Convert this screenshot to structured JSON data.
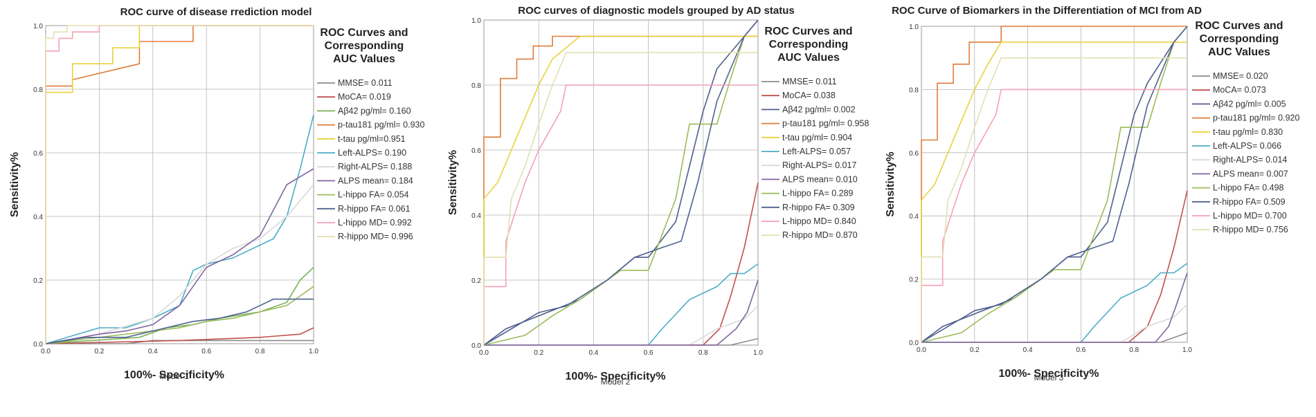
{
  "chart_data": [
    {
      "type": "line",
      "title": "ROC curve of disease rrediction model",
      "xlabel": "100%- Specificity%",
      "ylabel": "Sensitivity%",
      "caption": "Model 1",
      "xlim": [
        0,
        1
      ],
      "ylim": [
        0,
        1
      ],
      "xticks": [
        "0.0",
        "0.2",
        "0.4",
        "0.6",
        "0.8",
        "1.0"
      ],
      "yticks": [
        "0.0",
        "0.2",
        "0.4",
        "0.6",
        "0.8",
        "1.0"
      ],
      "legend_title": [
        "ROC Curves and",
        "Corresponding",
        "AUC Values"
      ],
      "series": [
        {
          "name": "MMSE",
          "label": "MMSE= 0.011",
          "color": "#8b8b8b",
          "x": [
            0,
            0.3,
            0.4,
            1
          ],
          "y": [
            0,
            0,
            0.01,
            0.01
          ]
        },
        {
          "name": "MoCA",
          "label": "MoCA= 0.019",
          "color": "#c0504d",
          "x": [
            0,
            0.5,
            0.8,
            0.95,
            1
          ],
          "y": [
            0,
            0.01,
            0.02,
            0.03,
            0.05
          ]
        },
        {
          "name": "Aβ42 pg/ml",
          "label": "Aβ42 pg/ml= 0.160",
          "color": "#77b255",
          "x": [
            0,
            0.35,
            0.45,
            0.55,
            0.65,
            0.8,
            0.9,
            0.95,
            1
          ],
          "y": [
            0,
            0.02,
            0.05,
            0.06,
            0.08,
            0.1,
            0.13,
            0.2,
            0.24
          ]
        },
        {
          "name": "p-tau181 pg/ml",
          "label": "p-tau181 pg/ml= 0.930",
          "color": "#e07b39",
          "x": [
            0,
            0,
            0.1,
            0.1,
            0.35,
            0.35,
            0.55,
            0.55,
            1
          ],
          "y": [
            0,
            0.81,
            0.81,
            0.83,
            0.88,
            0.95,
            0.95,
            1,
            1
          ]
        },
        {
          "name": "t-tau pg/ml",
          "label": "t-tau pg/ml=0.951",
          "color": "#e8d23a",
          "x": [
            0,
            0,
            0.1,
            0.1,
            0.25,
            0.25,
            0.35,
            0.35,
            1
          ],
          "y": [
            0,
            0.79,
            0.79,
            0.88,
            0.88,
            0.93,
            0.93,
            1,
            1
          ]
        },
        {
          "name": "Left-ALPS",
          "label": "Left-ALPS= 0.190",
          "color": "#4bacc6",
          "x": [
            0,
            0.2,
            0.3,
            0.4,
            0.5,
            0.55,
            0.6,
            0.7,
            0.85,
            0.9,
            0.95,
            1
          ],
          "y": [
            0,
            0.05,
            0.05,
            0.08,
            0.12,
            0.23,
            0.25,
            0.27,
            0.33,
            0.4,
            0.55,
            0.72
          ]
        },
        {
          "name": "Right-ALPS",
          "label": "Right-ALPS= 0.188",
          "color": "#d9d9d9",
          "x": [
            0,
            0.2,
            0.4,
            0.5,
            0.6,
            0.7,
            0.8,
            0.9,
            1
          ],
          "y": [
            0,
            0.03,
            0.08,
            0.15,
            0.25,
            0.3,
            0.33,
            0.4,
            0.5
          ]
        },
        {
          "name": "ALPS mean",
          "label": "ALPS mean= 0.184",
          "color": "#8064a2",
          "x": [
            0,
            0.2,
            0.3,
            0.4,
            0.5,
            0.6,
            0.7,
            0.8,
            0.9,
            1
          ],
          "y": [
            0,
            0.03,
            0.04,
            0.06,
            0.12,
            0.24,
            0.28,
            0.34,
            0.5,
            0.55
          ]
        },
        {
          "name": "L-hippo FA",
          "label": "L-hippo FA= 0.054",
          "color": "#9bbb59",
          "x": [
            0,
            0.4,
            0.5,
            0.6,
            0.7,
            0.8,
            0.9,
            0.95,
            1
          ],
          "y": [
            0,
            0.04,
            0.05,
            0.07,
            0.08,
            0.1,
            0.12,
            0.15,
            0.18
          ]
        },
        {
          "name": "R-hippo FA",
          "label": "R-hippo FA= 0.061",
          "color": "#4f6190",
          "x": [
            0,
            0.15,
            0.3,
            0.45,
            0.55,
            0.65,
            0.75,
            0.85,
            0.9,
            1
          ],
          "y": [
            0,
            0.02,
            0.02,
            0.05,
            0.07,
            0.08,
            0.1,
            0.14,
            0.14,
            0.14
          ]
        },
        {
          "name": "L-hippo MD",
          "label": "L-hippo MD= 0.992",
          "color": "#f4a0b5",
          "x": [
            0,
            0,
            0.05,
            0.05,
            0.1,
            0.1,
            0.2,
            0.2,
            1
          ],
          "y": [
            0,
            0.92,
            0.92,
            0.96,
            0.96,
            0.98,
            0.98,
            1,
            1
          ]
        },
        {
          "name": "R-hippo MD",
          "label": "R-hippo MD= 0.996",
          "color": "#e3e0b0",
          "x": [
            0,
            0,
            0.03,
            0.03,
            0.08,
            0.08,
            1
          ],
          "y": [
            0,
            0.96,
            0.96,
            0.98,
            0.98,
            1,
            1
          ]
        }
      ]
    },
    {
      "type": "line",
      "title": "ROC curves of diagnostic models grouped by AD status",
      "xlabel": "100%- Specificity%",
      "ylabel": "Sensitivity%",
      "caption": "Model 2",
      "xlim": [
        0,
        1
      ],
      "ylim": [
        0,
        1
      ],
      "xticks": [
        "0.0",
        "0.2",
        "0.4",
        "0.6",
        "0.8",
        "1.0"
      ],
      "yticks": [
        "0.0",
        "0.2",
        "0.4",
        "0.6",
        "0.8",
        "1.0"
      ],
      "legend_title": [
        "ROC Curves and",
        "Corresponding",
        "AUC Values"
      ],
      "series": [
        {
          "name": "MMSE",
          "label": "MMSE= 0.011",
          "color": "#8b8b8b",
          "x": [
            0,
            0.9,
            1
          ],
          "y": [
            0,
            0,
            0.02
          ]
        },
        {
          "name": "MoCA",
          "label": "MoCA= 0.038",
          "color": "#c0504d",
          "x": [
            0,
            0.8,
            0.86,
            0.9,
            0.95,
            1
          ],
          "y": [
            0,
            0,
            0.05,
            0.15,
            0.3,
            0.5
          ]
        },
        {
          "name": "Aβ42 pg/ml",
          "label": "Aβ42 pg/ml= 0.002",
          "color": "#4f5d8a",
          "x": [
            0,
            0.08,
            0.2,
            0.35,
            0.45,
            0.55,
            0.6,
            0.7,
            0.75,
            0.8,
            0.85,
            0.95,
            1
          ],
          "y": [
            0,
            0.05,
            0.09,
            0.14,
            0.2,
            0.27,
            0.27,
            0.38,
            0.55,
            0.72,
            0.85,
            0.95,
            1
          ]
        },
        {
          "name": "p-tau181 pg/ml",
          "label": "p-tau181 pg/ml= 0.958",
          "color": "#e07b39",
          "x": [
            0,
            0,
            0.06,
            0.06,
            0.12,
            0.12,
            0.18,
            0.18,
            0.25,
            0.25,
            1
          ],
          "y": [
            0,
            0.64,
            0.64,
            0.82,
            0.82,
            0.88,
            0.88,
            0.92,
            0.92,
            0.95,
            0.95
          ]
        },
        {
          "name": "t-tau pg/ml",
          "label": "t-tau pg/ml= 0.904",
          "color": "#e8d23a",
          "x": [
            0,
            0,
            0.05,
            0.1,
            0.15,
            0.2,
            0.25,
            0.35,
            1
          ],
          "y": [
            0,
            0.45,
            0.5,
            0.6,
            0.7,
            0.8,
            0.88,
            0.95,
            0.95
          ]
        },
        {
          "name": "Left-ALPS",
          "label": "Left-ALPS= 0.057",
          "color": "#4bacc6",
          "x": [
            0,
            0.6,
            0.65,
            0.75,
            0.85,
            0.9,
            0.95,
            1
          ],
          "y": [
            0,
            0,
            0.05,
            0.14,
            0.18,
            0.22,
            0.22,
            0.25
          ]
        },
        {
          "name": "Right-ALPS",
          "label": "Right-ALPS= 0.017",
          "color": "#d9d9d9",
          "x": [
            0,
            0.75,
            0.85,
            0.95,
            1
          ],
          "y": [
            0,
            0,
            0.05,
            0.08,
            0.12
          ]
        },
        {
          "name": "ALPS mean",
          "label": "ALPS mean= 0.010",
          "color": "#8064a2",
          "x": [
            0,
            0.85,
            0.92,
            0.96,
            1
          ],
          "y": [
            0,
            0,
            0.05,
            0.1,
            0.2
          ]
        },
        {
          "name": "L-hippo FA",
          "label": "L-hippo FA= 0.289",
          "color": "#9bbb59",
          "x": [
            0,
            0.15,
            0.25,
            0.35,
            0.5,
            0.6,
            0.7,
            0.75,
            0.85,
            0.9,
            0.95,
            1
          ],
          "y": [
            0,
            0.03,
            0.09,
            0.14,
            0.23,
            0.23,
            0.45,
            0.68,
            0.68,
            0.82,
            0.95,
            1
          ]
        },
        {
          "name": "R-hippo FA",
          "label": "R-hippo FA= 0.309",
          "color": "#4f6190",
          "x": [
            0,
            0.1,
            0.2,
            0.3,
            0.45,
            0.55,
            0.65,
            0.72,
            0.78,
            0.85,
            0.9,
            0.95,
            1
          ],
          "y": [
            0,
            0.05,
            0.1,
            0.12,
            0.2,
            0.27,
            0.3,
            0.32,
            0.5,
            0.75,
            0.85,
            0.95,
            1
          ]
        },
        {
          "name": "L-hippo MD",
          "label": "L-hippo MD= 0.840",
          "color": "#f4a0b5",
          "x": [
            0,
            0,
            0.08,
            0.08,
            0.15,
            0.2,
            0.28,
            0.3,
            1
          ],
          "y": [
            0,
            0.18,
            0.18,
            0.32,
            0.5,
            0.6,
            0.72,
            0.8,
            0.8
          ]
        },
        {
          "name": "R-hippo MD",
          "label": "R-hippo MD= 0.870",
          "color": "#e3e0b0",
          "x": [
            0,
            0,
            0.08,
            0.1,
            0.15,
            0.2,
            0.25,
            0.3,
            1
          ],
          "y": [
            0,
            0.27,
            0.27,
            0.45,
            0.55,
            0.68,
            0.8,
            0.9,
            0.9
          ]
        }
      ]
    },
    {
      "type": "line",
      "title": "ROC Curve of Biomarkers in the Differentiation of MCI from AD",
      "xlabel": "100%- Specificity%",
      "ylabel": "Sensitivity%",
      "caption": "Model 3",
      "xlim": [
        0,
        1
      ],
      "ylim": [
        0,
        1
      ],
      "xticks": [
        "0.0",
        "0.2",
        "0.4",
        "0.6",
        "0.8",
        "1.0"
      ],
      "yticks": [
        "0.0",
        "0.2",
        "0.4",
        "0.6",
        "0.8",
        "1.0"
      ],
      "legend_title": [
        "ROC Curves and",
        "Corresponding",
        "AUC Values"
      ],
      "series": [
        {
          "name": "MMSE",
          "label": "MMSE= 0.020",
          "color": "#8b8b8b",
          "x": [
            0,
            0.9,
            1
          ],
          "y": [
            0,
            0,
            0.03
          ]
        },
        {
          "name": "MoCA",
          "label": "MoCA= 0.073",
          "color": "#c0504d",
          "x": [
            0,
            0.78,
            0.85,
            0.9,
            0.95,
            1
          ],
          "y": [
            0,
            0,
            0.05,
            0.15,
            0.3,
            0.48
          ]
        },
        {
          "name": "Aβ42 pg/ml",
          "label": "Aβ42 pg/ml= 0.005",
          "color": "#4f5d8a",
          "x": [
            0,
            0.08,
            0.2,
            0.35,
            0.45,
            0.55,
            0.6,
            0.7,
            0.75,
            0.8,
            0.85,
            0.95,
            1
          ],
          "y": [
            0,
            0.05,
            0.09,
            0.14,
            0.2,
            0.27,
            0.27,
            0.38,
            0.55,
            0.72,
            0.82,
            0.95,
            1
          ]
        },
        {
          "name": "p-tau181 pg/ml",
          "label": "p-tau181 pg/ml= 0.920",
          "color": "#e07b39",
          "x": [
            0,
            0,
            0.06,
            0.06,
            0.12,
            0.12,
            0.18,
            0.18,
            0.3,
            0.3,
            1
          ],
          "y": [
            0,
            0.64,
            0.64,
            0.82,
            0.82,
            0.88,
            0.88,
            0.95,
            0.95,
            1,
            1
          ]
        },
        {
          "name": "t-tau pg/ml",
          "label": "t-tau pg/ml= 0.830",
          "color": "#e8d23a",
          "x": [
            0,
            0,
            0.05,
            0.1,
            0.15,
            0.2,
            0.25,
            0.3,
            1
          ],
          "y": [
            0,
            0.45,
            0.5,
            0.6,
            0.7,
            0.8,
            0.88,
            0.95,
            0.95
          ]
        },
        {
          "name": "Left-ALPS",
          "label": "Left-ALPS= 0.066",
          "color": "#4bacc6",
          "x": [
            0,
            0.6,
            0.65,
            0.75,
            0.85,
            0.9,
            0.95,
            1
          ],
          "y": [
            0,
            0,
            0.05,
            0.14,
            0.18,
            0.22,
            0.22,
            0.25
          ]
        },
        {
          "name": "Right-ALPS",
          "label": "Right-ALPS= 0.014",
          "color": "#d9d9d9",
          "x": [
            0,
            0.75,
            0.85,
            0.95,
            1
          ],
          "y": [
            0,
            0,
            0.05,
            0.08,
            0.12
          ]
        },
        {
          "name": "ALPS mean",
          "label": "ALPS mean= 0.007",
          "color": "#8064a2",
          "x": [
            0,
            0.88,
            0.93,
            0.96,
            1
          ],
          "y": [
            0,
            0,
            0.05,
            0.12,
            0.22
          ]
        },
        {
          "name": "L-hippo FA",
          "label": "L-hippo FA= 0.498",
          "color": "#9bbb59",
          "x": [
            0,
            0.15,
            0.25,
            0.35,
            0.5,
            0.6,
            0.7,
            0.75,
            0.85,
            0.9,
            0.95,
            1
          ],
          "y": [
            0,
            0.03,
            0.09,
            0.14,
            0.23,
            0.23,
            0.45,
            0.68,
            0.68,
            0.82,
            0.95,
            1
          ]
        },
        {
          "name": "R-hippo FA",
          "label": "R-hippo FA= 0.509",
          "color": "#4f6190",
          "x": [
            0,
            0.1,
            0.2,
            0.3,
            0.45,
            0.55,
            0.65,
            0.72,
            0.78,
            0.85,
            0.9,
            0.95,
            1
          ],
          "y": [
            0,
            0.05,
            0.1,
            0.12,
            0.2,
            0.27,
            0.3,
            0.32,
            0.5,
            0.75,
            0.85,
            0.95,
            1
          ]
        },
        {
          "name": "L-hippo MD",
          "label": "L-hippo MD= 0.700",
          "color": "#f4a0b5",
          "x": [
            0,
            0,
            0.08,
            0.08,
            0.15,
            0.2,
            0.28,
            0.3,
            1
          ],
          "y": [
            0,
            0.18,
            0.18,
            0.32,
            0.5,
            0.6,
            0.72,
            0.8,
            0.8
          ]
        },
        {
          "name": "R-hippo MD",
          "label": "R-hippo MD= 0.756",
          "color": "#e3e0b0",
          "x": [
            0,
            0,
            0.08,
            0.1,
            0.15,
            0.2,
            0.25,
            0.3,
            1
          ],
          "y": [
            0,
            0.27,
            0.27,
            0.45,
            0.55,
            0.68,
            0.8,
            0.9,
            0.9
          ]
        }
      ]
    }
  ]
}
